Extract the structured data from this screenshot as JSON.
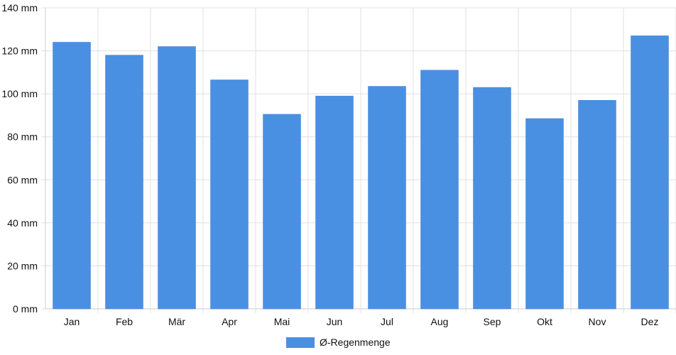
{
  "chart_data": {
    "type": "bar",
    "categories": [
      "Jan",
      "Feb",
      "Mär",
      "Apr",
      "Mai",
      "Jun",
      "Jul",
      "Aug",
      "Sep",
      "Okt",
      "Nov",
      "Dez"
    ],
    "series": [
      {
        "name": "Ø-Regenmenge",
        "values": [
          124,
          118,
          122,
          106.5,
          90.5,
          99,
          103.5,
          111,
          103,
          88.5,
          97,
          127
        ],
        "color": "#4a90e2"
      }
    ],
    "y_ticks": [
      "0 mm",
      "20 mm",
      "40 mm",
      "60 mm",
      "80 mm",
      "100 mm",
      "120 mm",
      "140 mm"
    ],
    "ylim": [
      0,
      140
    ],
    "y_unit": "mm",
    "grid": true,
    "legend_position": "bottom-center",
    "colors": {
      "bar": "#4a90e2",
      "grid": "#e0e0e0",
      "axis": "#cccccc"
    }
  }
}
